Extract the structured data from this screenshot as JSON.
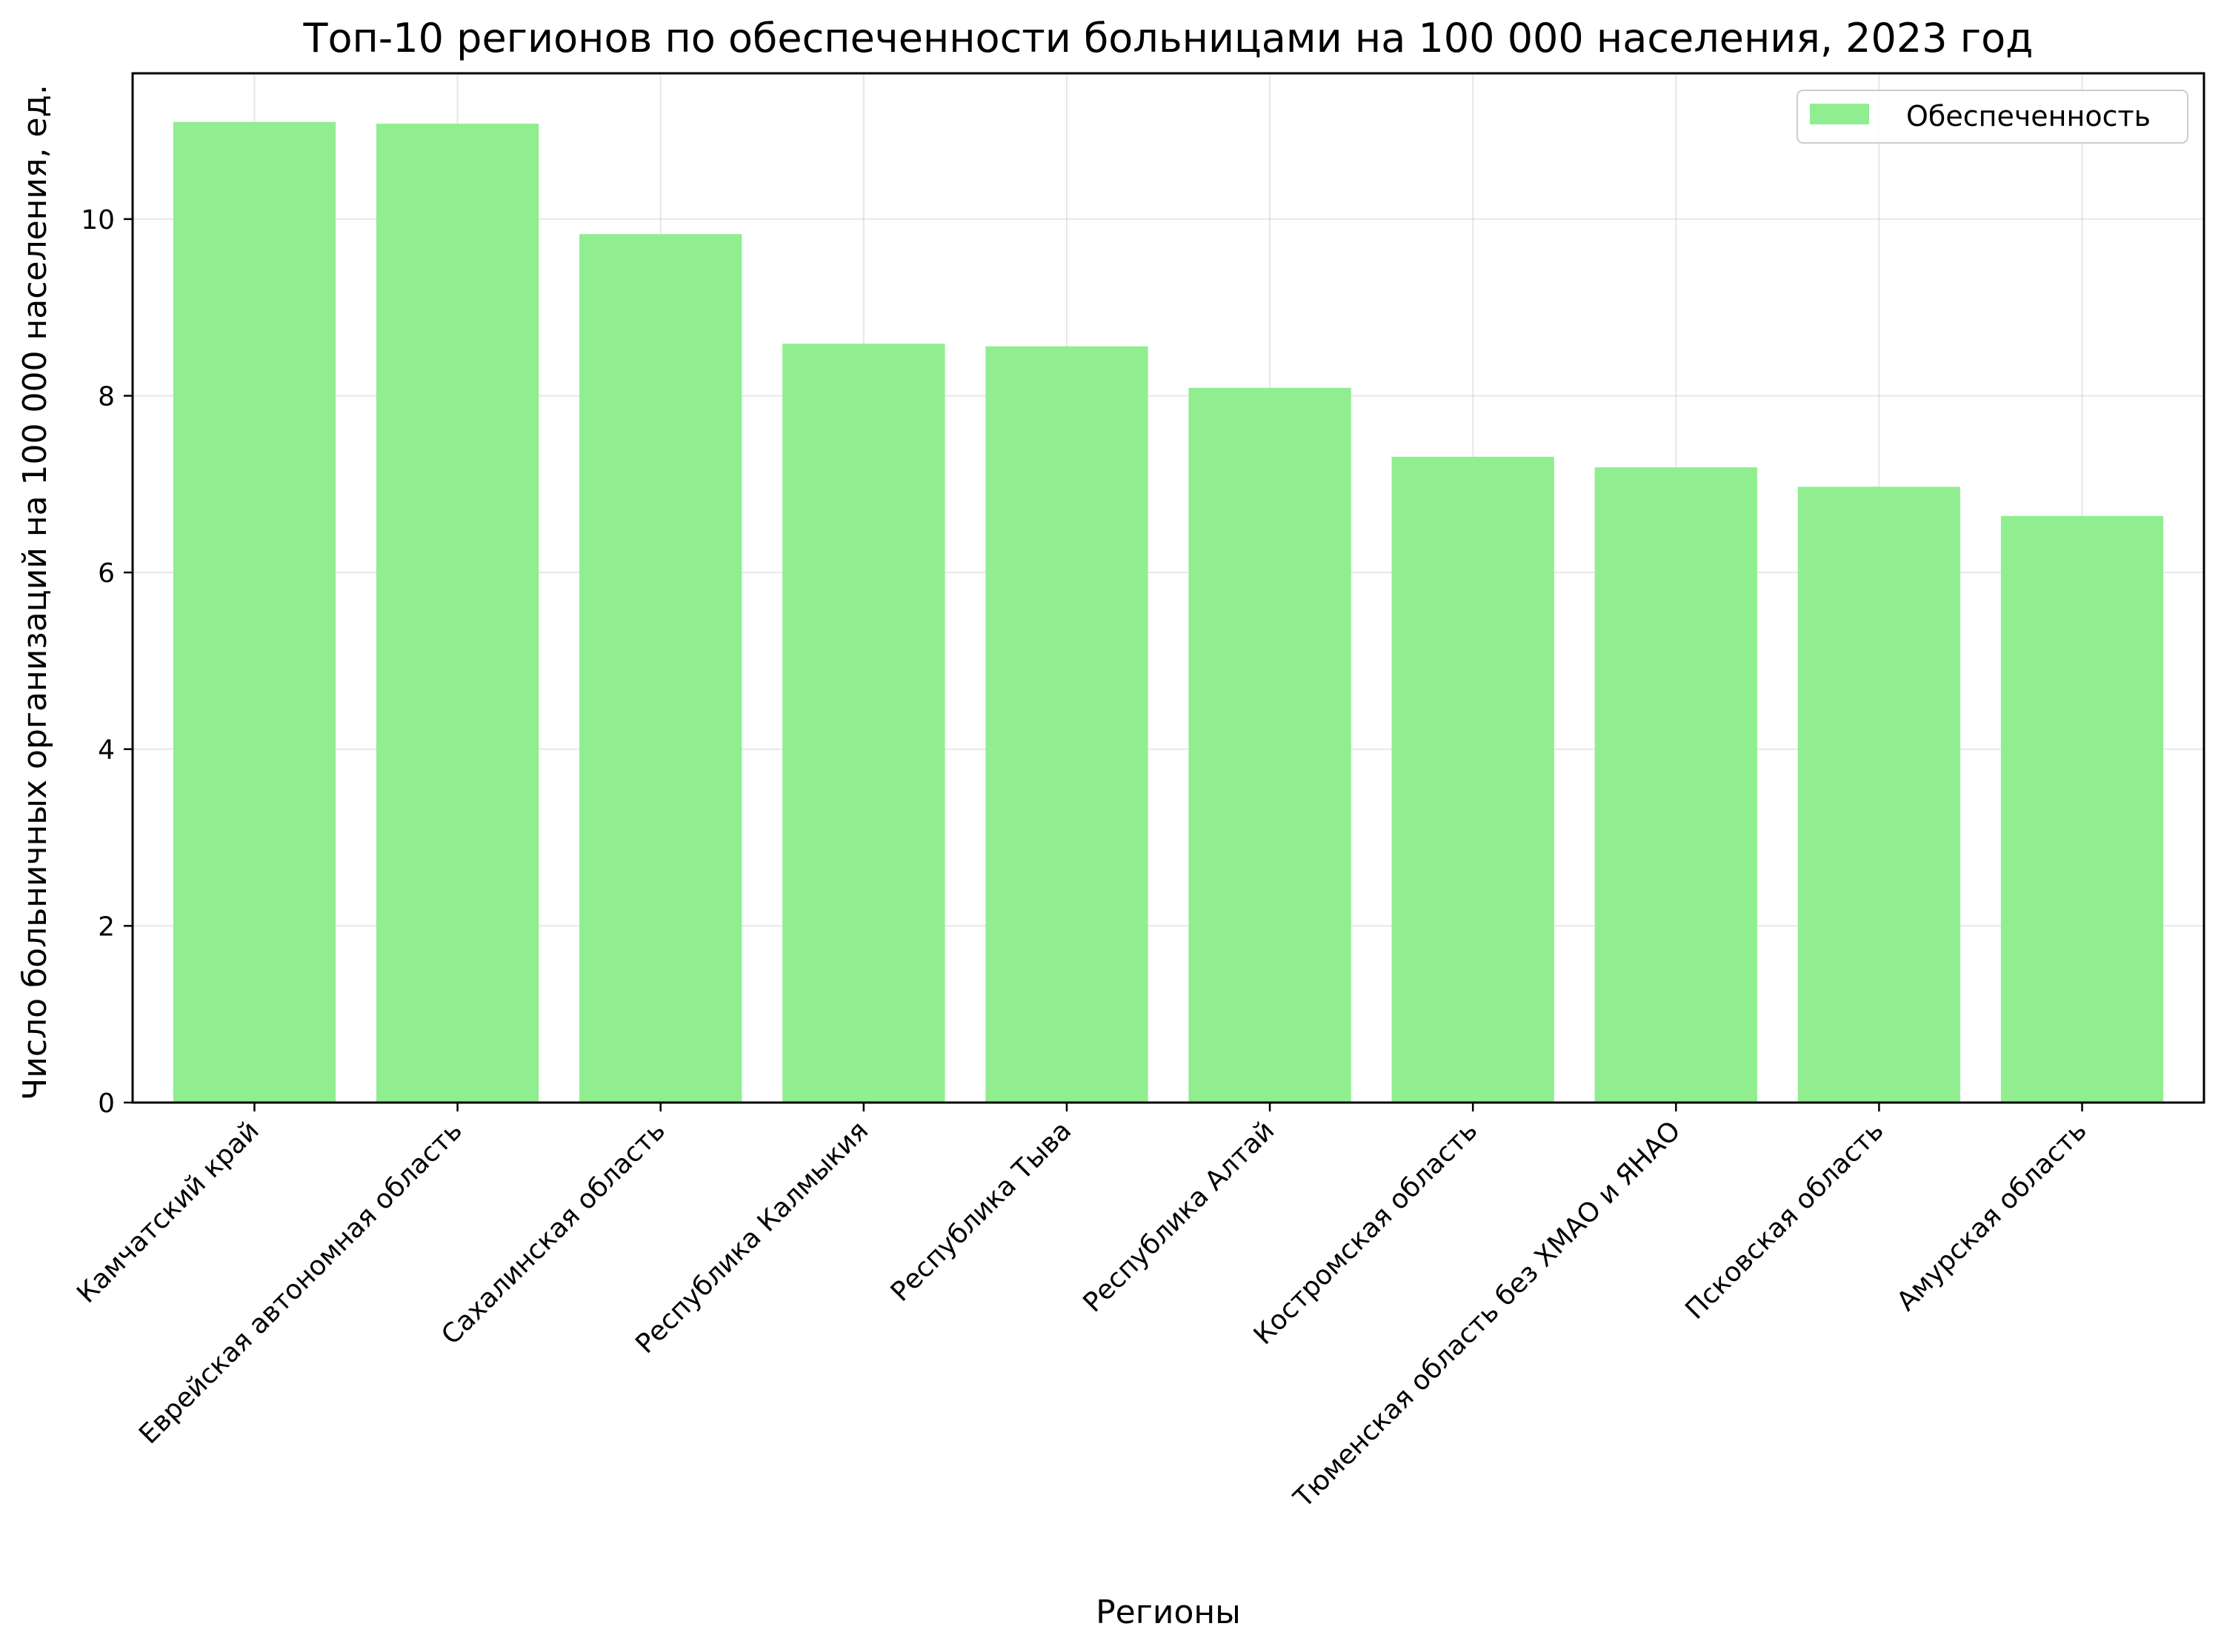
{
  "chart_data": {
    "type": "bar",
    "title": "Топ-10 регионов по обеспеченности больницами на 100 000 населения, 2023 год",
    "xlabel": "Регионы",
    "ylabel": "Число больничных организаций на 100 000 населения, ед.",
    "categories": [
      "Камчатский край",
      "Еврейская автономная область",
      "Сахалинская область",
      "Республика Калмыкия",
      "Республика Тыва",
      "Республика Алтай",
      "Костромская область",
      "Тюменская область без ХМАО и ЯНАО",
      "Псковская область",
      "Амурская область"
    ],
    "series": [
      {
        "name": "Обеспеченность",
        "values": [
          11.1,
          11.08,
          9.83,
          8.59,
          8.56,
          8.09,
          7.31,
          7.19,
          6.97,
          6.64
        ],
        "color": "#90ee90"
      }
    ],
    "ylim": [
      0,
      11.65
    ],
    "yticks": [
      0,
      2,
      4,
      6,
      8,
      10
    ],
    "grid": true,
    "legend_position": "top-right"
  }
}
